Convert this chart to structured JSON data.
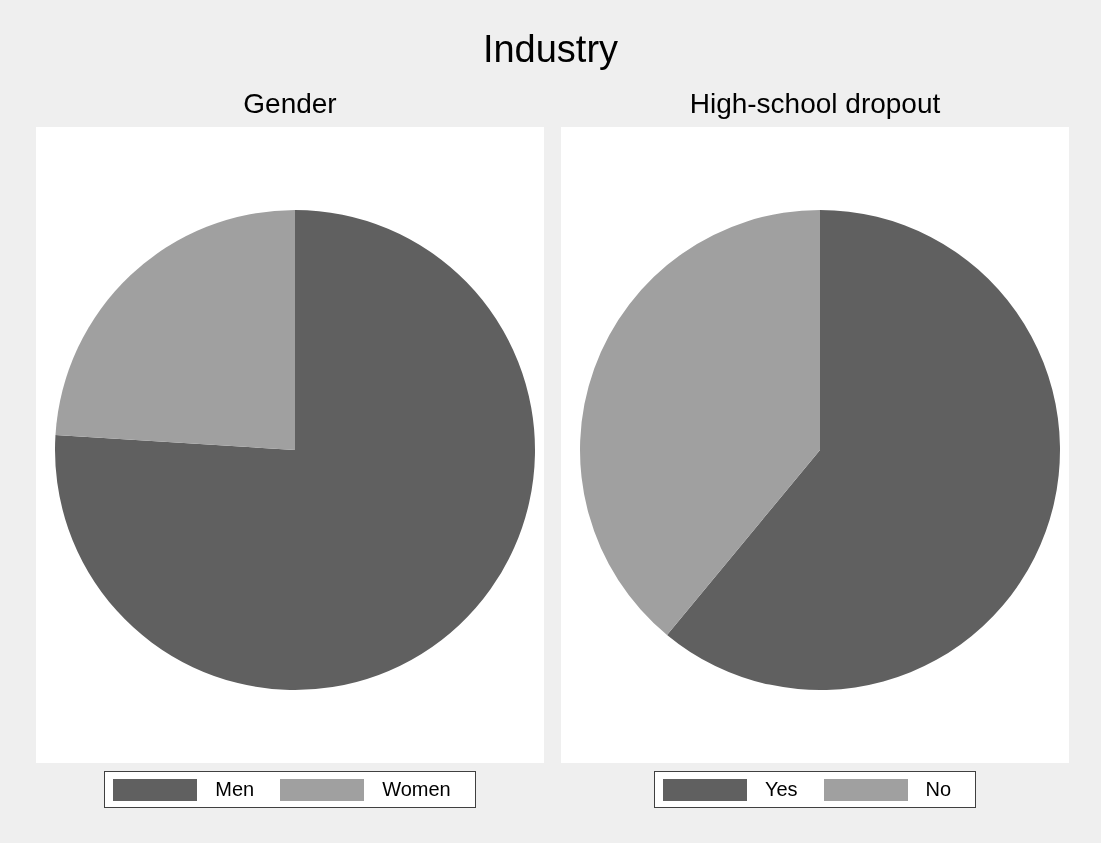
{
  "chart_data": [
    {
      "type": "pie",
      "title": "Industry",
      "subtitle": "Gender",
      "categories": [
        "Men",
        "Women"
      ],
      "values": [
        76,
        24
      ],
      "colors": [
        "#606060",
        "#a0a0a0"
      ],
      "legend": "bottom"
    },
    {
      "type": "pie",
      "subtitle": "High-school dropout",
      "categories": [
        "Yes",
        "No"
      ],
      "values": [
        61,
        39
      ],
      "colors": [
        "#606060",
        "#a0a0a0"
      ],
      "legend": "bottom"
    }
  ]
}
